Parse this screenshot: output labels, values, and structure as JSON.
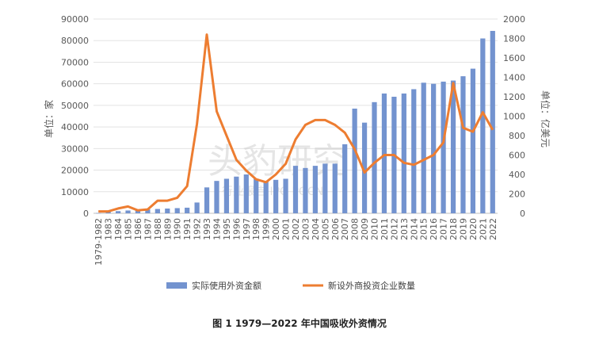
{
  "caption": "图 1   1979—2022 年中国吸收外资情况",
  "watermark": {
    "main": "头豹研究",
    "sub": "行业报告 IPO POCN"
  },
  "colors": {
    "bar": "#7393cf",
    "line": "#ed7d31"
  },
  "chart_data": {
    "type": "bar+line",
    "categories": [
      "1979-1982",
      "1983",
      "1984",
      "1985",
      "1986",
      "1987",
      "1988",
      "1989",
      "1990",
      "1991",
      "1992",
      "1993",
      "1994",
      "1995",
      "1996",
      "1997",
      "1998",
      "1999",
      "2000",
      "2001",
      "2002",
      "2003",
      "2004",
      "2005",
      "2006",
      "2007",
      "2008",
      "2009",
      "2010",
      "2011",
      "2012",
      "2013",
      "2014",
      "2015",
      "2016",
      "2017",
      "2018",
      "2019",
      "2020",
      "2021",
      "2022"
    ],
    "y_left": {
      "label": "单位：家",
      "ticks": [
        "0",
        "10000",
        "20000",
        "30000",
        "40000",
        "50000",
        "60000",
        "70000",
        "80000",
        "90000"
      ],
      "range": [
        0,
        90000
      ]
    },
    "y_right": {
      "label": "单位：亿美元",
      "ticks": [
        "0",
        "200",
        "400",
        "600",
        "800",
        "1000",
        "1200",
        "1400",
        "1600",
        "1800",
        "2000"
      ],
      "range": [
        0,
        2000
      ]
    },
    "series": [
      {
        "name": "实际使用外资金额",
        "type": "bar",
        "axis": "left",
        "values": [
          100,
          700,
          1000,
          1300,
          1600,
          1800,
          2000,
          2200,
          2400,
          2600,
          5000,
          12000,
          15000,
          16000,
          17000,
          18000,
          16000,
          15000,
          15500,
          16000,
          22000,
          21000,
          22000,
          23000,
          23000,
          32000,
          48500,
          42000,
          51500,
          55500,
          54000,
          55500,
          57500,
          60500,
          60000,
          61000,
          61500,
          63500,
          67000,
          81000,
          84500
        ]
      },
      {
        "name": "新设外商投资企业数量",
        "type": "line",
        "axis": "right",
        "values": [
          20,
          20,
          50,
          70,
          30,
          40,
          130,
          130,
          160,
          280,
          920,
          1840,
          1050,
          800,
          550,
          440,
          350,
          320,
          400,
          510,
          760,
          910,
          960,
          960,
          910,
          830,
          660,
          420,
          520,
          600,
          600,
          520,
          500,
          550,
          600,
          730,
          1340,
          880,
          840,
          1040,
          860
        ]
      }
    ],
    "legend_position": "bottom",
    "grid": "horizontal"
  }
}
